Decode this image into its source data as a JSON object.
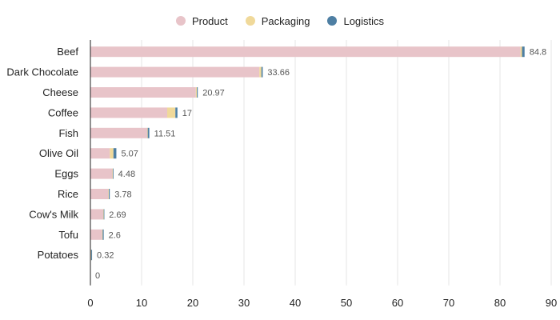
{
  "chart_data": {
    "type": "bar",
    "orientation": "horizontal",
    "stacked": true,
    "categories": [
      "Beef",
      "Dark Chocolate",
      "Cheese",
      "Coffee",
      "Fish",
      "Olive Oil",
      "Eggs",
      "Rice",
      "Cow's Milk",
      "Tofu",
      "Potatoes",
      ""
    ],
    "series": [
      {
        "name": "Product",
        "color": "#e8c4c9",
        "values": [
          84.0,
          33.0,
          20.6,
          15.0,
          11.1,
          3.8,
          4.3,
          3.5,
          2.5,
          2.3,
          0.12,
          0
        ]
      },
      {
        "name": "Packaging",
        "color": "#f0d99a",
        "values": [
          0.3,
          0.4,
          0.2,
          1.6,
          0.1,
          0.7,
          0.1,
          0.1,
          0.1,
          0.1,
          0.05,
          0
        ]
      },
      {
        "name": "Logistics",
        "color": "#4e7fa3",
        "values": [
          0.5,
          0.26,
          0.17,
          0.4,
          0.31,
          0.57,
          0.08,
          0.18,
          0.09,
          0.2,
          0.15,
          0
        ]
      }
    ],
    "totals": [
      "84.8",
      "33.66",
      "20.97",
      "17",
      "11.51",
      "5.07",
      "4.48",
      "3.78",
      "2.69",
      "2.6",
      "0.32",
      "0"
    ],
    "xlim": [
      0,
      90
    ],
    "xticks": [
      0,
      10,
      20,
      30,
      40,
      50,
      60,
      70,
      80,
      90
    ],
    "grid": true,
    "legend_position": "top-center"
  }
}
